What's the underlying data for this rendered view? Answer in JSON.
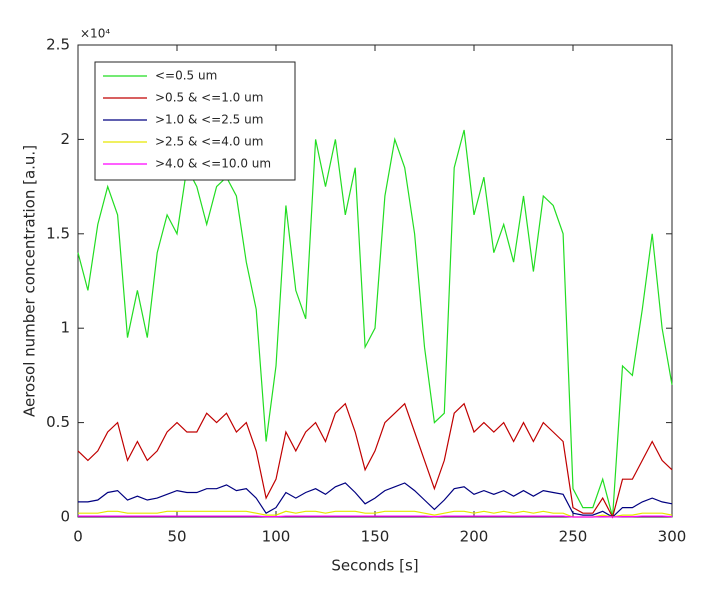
{
  "chart_data": {
    "type": "line",
    "xlabel": "Seconds [s]",
    "ylabel": "Aerosol number concentration [a.u.]",
    "y_multiplier": "×10⁴",
    "xlim": [
      0,
      300
    ],
    "xticks": [
      0,
      50,
      100,
      150,
      200,
      250,
      300
    ],
    "ylim": [
      0,
      2.5
    ],
    "yticks": [
      0,
      0.5,
      1,
      1.5,
      2,
      2.5
    ],
    "legend": "northwest",
    "x": [
      0,
      5,
      10,
      15,
      20,
      25,
      30,
      35,
      40,
      45,
      50,
      55,
      60,
      65,
      70,
      75,
      80,
      85,
      90,
      95,
      100,
      105,
      110,
      115,
      120,
      125,
      130,
      135,
      140,
      145,
      150,
      155,
      160,
      165,
      170,
      175,
      180,
      185,
      190,
      195,
      200,
      205,
      210,
      215,
      220,
      225,
      230,
      235,
      240,
      245,
      250,
      255,
      260,
      265,
      270,
      275,
      280,
      285,
      290,
      295,
      300
    ],
    "series": [
      {
        "name": "<=0.5 um",
        "color": "#22dd22",
        "values": [
          1.4,
          1.2,
          1.55,
          1.75,
          1.6,
          0.95,
          1.2,
          0.95,
          1.4,
          1.6,
          1.5,
          1.85,
          1.75,
          1.55,
          1.75,
          1.8,
          1.7,
          1.35,
          1.1,
          0.4,
          0.8,
          1.65,
          1.2,
          1.05,
          2.0,
          1.75,
          2.0,
          1.6,
          1.85,
          0.9,
          1.0,
          1.7,
          2.0,
          1.85,
          1.5,
          0.9,
          0.5,
          0.55,
          1.85,
          2.05,
          1.6,
          1.8,
          1.4,
          1.55,
          1.35,
          1.7,
          1.3,
          1.7,
          1.65,
          1.5,
          0.15,
          0.05,
          0.05,
          0.2,
          0.0,
          0.8,
          0.75,
          1.1,
          1.5,
          1.0,
          0.7
        ]
      },
      {
        "name": ">0.5 & <=1.0 um",
        "color": "#c00000",
        "values": [
          0.35,
          0.3,
          0.35,
          0.45,
          0.5,
          0.3,
          0.4,
          0.3,
          0.35,
          0.45,
          0.5,
          0.45,
          0.45,
          0.55,
          0.5,
          0.55,
          0.45,
          0.5,
          0.35,
          0.1,
          0.2,
          0.45,
          0.35,
          0.45,
          0.5,
          0.4,
          0.55,
          0.6,
          0.45,
          0.25,
          0.35,
          0.5,
          0.55,
          0.6,
          0.45,
          0.3,
          0.15,
          0.3,
          0.55,
          0.6,
          0.45,
          0.5,
          0.45,
          0.5,
          0.4,
          0.5,
          0.4,
          0.5,
          0.45,
          0.4,
          0.05,
          0.02,
          0.02,
          0.1,
          0.0,
          0.2,
          0.2,
          0.3,
          0.4,
          0.3,
          0.25
        ]
      },
      {
        "name": ">1.0 & <=2.5 um",
        "color": "#000080",
        "values": [
          0.08,
          0.08,
          0.09,
          0.13,
          0.14,
          0.09,
          0.11,
          0.09,
          0.1,
          0.12,
          0.14,
          0.13,
          0.13,
          0.15,
          0.15,
          0.17,
          0.14,
          0.15,
          0.1,
          0.02,
          0.05,
          0.13,
          0.1,
          0.13,
          0.15,
          0.12,
          0.16,
          0.18,
          0.13,
          0.07,
          0.1,
          0.14,
          0.16,
          0.18,
          0.14,
          0.09,
          0.04,
          0.09,
          0.15,
          0.16,
          0.12,
          0.14,
          0.12,
          0.14,
          0.11,
          0.14,
          0.11,
          0.14,
          0.13,
          0.12,
          0.02,
          0.01,
          0.01,
          0.03,
          0.0,
          0.05,
          0.05,
          0.08,
          0.1,
          0.08,
          0.07
        ]
      },
      {
        "name": ">2.5 & <=4.0 um",
        "color": "#e6e600",
        "values": [
          0.02,
          0.02,
          0.02,
          0.03,
          0.03,
          0.02,
          0.02,
          0.02,
          0.02,
          0.03,
          0.03,
          0.03,
          0.03,
          0.03,
          0.03,
          0.03,
          0.03,
          0.03,
          0.02,
          0.01,
          0.01,
          0.03,
          0.02,
          0.03,
          0.03,
          0.02,
          0.03,
          0.03,
          0.03,
          0.02,
          0.02,
          0.03,
          0.03,
          0.03,
          0.03,
          0.02,
          0.01,
          0.02,
          0.03,
          0.03,
          0.02,
          0.03,
          0.02,
          0.03,
          0.02,
          0.03,
          0.02,
          0.03,
          0.02,
          0.02,
          0.0,
          0.0,
          0.0,
          0.01,
          0.0,
          0.01,
          0.01,
          0.02,
          0.02,
          0.02,
          0.01
        ]
      },
      {
        "name": ">4.0 & <=10.0 um",
        "color": "#ff00ff",
        "values": [
          0.005,
          0.005,
          0.005,
          0.005,
          0.005,
          0.005,
          0.005,
          0.005,
          0.005,
          0.005,
          0.005,
          0.005,
          0.005,
          0.005,
          0.005,
          0.005,
          0.005,
          0.005,
          0.005,
          0.002,
          0.002,
          0.005,
          0.005,
          0.005,
          0.005,
          0.005,
          0.005,
          0.005,
          0.005,
          0.005,
          0.005,
          0.005,
          0.005,
          0.005,
          0.005,
          0.005,
          0.002,
          0.005,
          0.005,
          0.005,
          0.005,
          0.005,
          0.005,
          0.005,
          0.005,
          0.005,
          0.005,
          0.005,
          0.005,
          0.005,
          0.0,
          0.0,
          0.0,
          0.002,
          0.0,
          0.002,
          0.002,
          0.005,
          0.005,
          0.005,
          0.002
        ]
      }
    ]
  }
}
